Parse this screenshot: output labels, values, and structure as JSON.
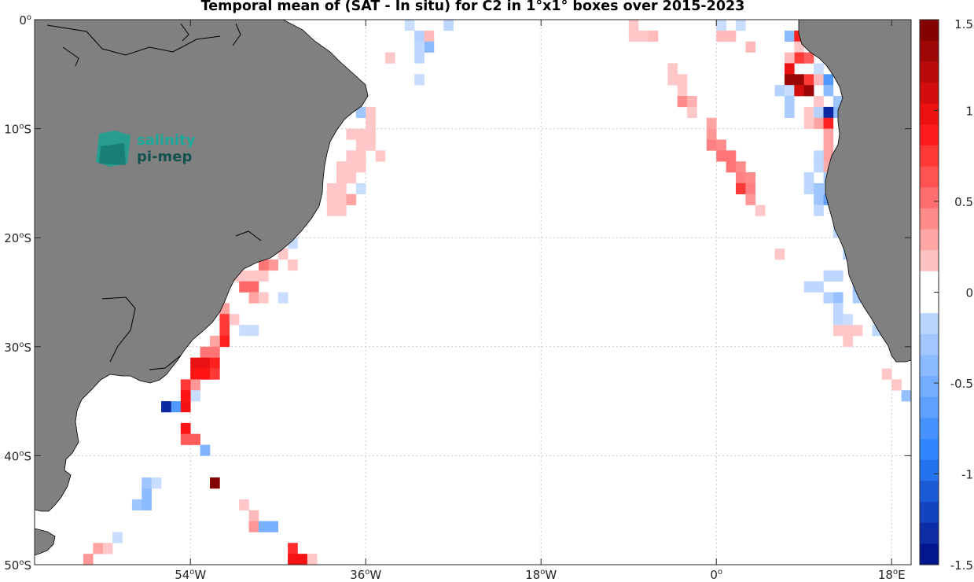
{
  "title": "Temporal mean of (SAT - In situ) for C2 in 1°x1° boxes over 2015-2023",
  "colors": {
    "land": "#808080",
    "ocean": "#ffffff",
    "grid": "#c8c8c8",
    "frame": "#262626"
  },
  "logo": {
    "line1": "salinity",
    "line2": "pi-mep",
    "color1": "#1aa89a",
    "color2": "#12524e"
  },
  "axes": {
    "lon_range": [
      -70,
      20
    ],
    "lat_range": [
      -50,
      0
    ],
    "x_ticks": [
      {
        "value": -54,
        "main": "54",
        "sup": "o",
        "dir": "W"
      },
      {
        "value": -36,
        "main": "36",
        "sup": "o",
        "dir": "W"
      },
      {
        "value": -18,
        "main": "18",
        "sup": "o",
        "dir": "W"
      },
      {
        "value": 0,
        "main": "0",
        "sup": "o",
        "dir": ""
      },
      {
        "value": 18,
        "main": "18",
        "sup": "o",
        "dir": "E"
      }
    ],
    "y_ticks": [
      {
        "value": 0,
        "main": "0",
        "sup": "o",
        "dir": ""
      },
      {
        "value": -10,
        "main": "10",
        "sup": "o",
        "dir": "S"
      },
      {
        "value": -20,
        "main": "20",
        "sup": "o",
        "dir": "S"
      },
      {
        "value": -30,
        "main": "30",
        "sup": "o",
        "dir": "S"
      },
      {
        "value": -40,
        "main": "40",
        "sup": "o",
        "dir": "S"
      },
      {
        "value": -50,
        "main": "50",
        "sup": "o",
        "dir": "S"
      }
    ]
  },
  "colorbar": {
    "range": [
      -1.5,
      1.5
    ],
    "ticks": [
      {
        "value": 1.5,
        "label": "1.5"
      },
      {
        "value": 1,
        "label": "1"
      },
      {
        "value": 0.5,
        "label": "0.5"
      },
      {
        "value": 0,
        "label": "0"
      },
      {
        "value": -0.5,
        "label": "-0.5"
      },
      {
        "value": -1,
        "label": "-1"
      },
      {
        "value": -1.5,
        "label": "-1.5"
      }
    ],
    "levels": 26
  },
  "chart_data": {
    "type": "heatmap",
    "title": "Temporal mean of (SAT - In situ) for C2 in 1°x1° boxes over 2015-2023",
    "xlabel": "",
    "ylabel": "",
    "xlim": [
      -70,
      20
    ],
    "ylim": [
      -50,
      0
    ],
    "value_range": [
      -1.5,
      1.5
    ],
    "cells": [
      [
        -31.5,
        -0.5,
        -0.1
      ],
      [
        -30.5,
        -1.5,
        -0.2
      ],
      [
        -29.5,
        -1.5,
        0.2
      ],
      [
        -29.5,
        -2.5,
        -0.4
      ],
      [
        -33.5,
        -3.5,
        0.15
      ],
      [
        -30.5,
        -2.5,
        -0.15
      ],
      [
        -30.5,
        -3.5,
        -0.15
      ],
      [
        -30.5,
        -5.5,
        -0.1
      ],
      [
        -27.5,
        -0.5,
        -0.15
      ],
      [
        -36.5,
        -8.5,
        -0.3
      ],
      [
        -35.5,
        -8.5,
        0.15
      ],
      [
        -35.5,
        -9.5,
        0.15
      ],
      [
        -35.5,
        -10.5,
        0.15
      ],
      [
        -36.5,
        -10.5,
        0.15
      ],
      [
        -37.5,
        -10.5,
        0.15
      ],
      [
        -36.5,
        -11.5,
        0.15
      ],
      [
        -35.5,
        -11.5,
        0.15
      ],
      [
        -37.5,
        -12.5,
        0.15
      ],
      [
        -36.5,
        -12.5,
        0.15
      ],
      [
        -34.5,
        -12.5,
        0.15
      ],
      [
        -38.5,
        -13.5,
        0.15
      ],
      [
        -37.5,
        -13.5,
        0.15
      ],
      [
        -36.5,
        -13.5,
        0.15
      ],
      [
        -38.5,
        -14.5,
        0.15
      ],
      [
        -37.5,
        -14.5,
        0.15
      ],
      [
        -38.5,
        -15.5,
        0.15
      ],
      [
        -39.5,
        -15.5,
        0.15
      ],
      [
        -38.5,
        -16.5,
        0.15
      ],
      [
        -37.5,
        -16.5,
        0.3
      ],
      [
        -36.5,
        -15.5,
        -0.1
      ],
      [
        -39.5,
        -17.5,
        0.15
      ],
      [
        -38.5,
        -17.5,
        0.15
      ],
      [
        -39.5,
        -16.5,
        0.15
      ],
      [
        -43.5,
        -20.5,
        -0.1
      ],
      [
        -44.5,
        -21.5,
        0.15
      ],
      [
        -43.5,
        -22.5,
        0.15
      ],
      [
        -45.5,
        -22.5,
        0.35
      ],
      [
        -46.5,
        -22.5,
        0.5
      ],
      [
        -46.5,
        -23.5,
        0.15
      ],
      [
        -47.5,
        -23.5,
        0.15
      ],
      [
        -48.5,
        -23.5,
        0.15
      ],
      [
        -49.5,
        -23.5,
        0.15
      ],
      [
        -48.5,
        -24.5,
        0.55
      ],
      [
        -47.5,
        -24.5,
        0.55
      ],
      [
        -47.5,
        -25.5,
        0.3
      ],
      [
        -46.5,
        -25.5,
        0.15
      ],
      [
        -44.5,
        -25.5,
        -0.1
      ],
      [
        -50.5,
        -26.5,
        0.3
      ],
      [
        -50.5,
        -27.5,
        0.75
      ],
      [
        -49.5,
        -27.5,
        0.15
      ],
      [
        -50.5,
        -28.5,
        0.75
      ],
      [
        -48.5,
        -28.5,
        -0.1
      ],
      [
        -47.5,
        -28.5,
        -0.1
      ],
      [
        -50.5,
        -29.5,
        0.85
      ],
      [
        -51.5,
        -29.5,
        0.3
      ],
      [
        -51.5,
        -30.5,
        0.5
      ],
      [
        -52.5,
        -30.5,
        0.5
      ],
      [
        -52.5,
        -31.5,
        1.0
      ],
      [
        -51.5,
        -31.5,
        0.85
      ],
      [
        -53.5,
        -31.5,
        1.0
      ],
      [
        -53.5,
        -32.5,
        0.9
      ],
      [
        -52.5,
        -32.5,
        0.9
      ],
      [
        -51.5,
        -32.5,
        0.75
      ],
      [
        -53.5,
        -33.5,
        0.35
      ],
      [
        -54.5,
        -33.5,
        0.75
      ],
      [
        -53.5,
        -34.5,
        -0.1
      ],
      [
        -54.5,
        -34.5,
        0.9
      ],
      [
        -55.5,
        -35.5,
        -0.7
      ],
      [
        -56.5,
        -35.5,
        -1.35
      ],
      [
        -54.5,
        -35.5,
        0.95
      ],
      [
        -54.5,
        -37.5,
        0.9
      ],
      [
        -53.5,
        -38.5,
        0.6
      ],
      [
        -54.5,
        -38.5,
        0.6
      ],
      [
        -52.5,
        -39.5,
        -0.45
      ],
      [
        -51.5,
        -42.5,
        1.45
      ],
      [
        -58.5,
        -42.5,
        -0.3
      ],
      [
        -57.5,
        -42.5,
        -0.1
      ],
      [
        -58.5,
        -43.5,
        -0.4
      ],
      [
        -59.5,
        -44.5,
        -0.3
      ],
      [
        -58.5,
        -44.5,
        -0.4
      ],
      [
        -48.5,
        -44.5,
        0.15
      ],
      [
        -47.5,
        -45.5,
        0.2
      ],
      [
        -47.5,
        -46.5,
        0.35
      ],
      [
        -46.5,
        -46.5,
        -0.5
      ],
      [
        -45.5,
        -46.5,
        -0.5
      ],
      [
        -61.5,
        -47.5,
        -0.1
      ],
      [
        -62.5,
        -48.5,
        0.15
      ],
      [
        -63.5,
        -48.5,
        0.3
      ],
      [
        -64.5,
        -49.5,
        0.35
      ],
      [
        -43.5,
        -48.5,
        0.8
      ],
      [
        -43.5,
        -49.5,
        0.95
      ],
      [
        -42.5,
        -49.5,
        0.95
      ],
      [
        -41.5,
        -49.5,
        0.15
      ],
      [
        -8.5,
        -0.5,
        0.15
      ],
      [
        -7.5,
        -1.5,
        0.15
      ],
      [
        -8.5,
        -1.5,
        0.15
      ],
      [
        -6.5,
        -1.5,
        0.2
      ],
      [
        0.5,
        -0.5,
        -0.1
      ],
      [
        2.5,
        -0.5,
        -0.1
      ],
      [
        0.5,
        -1.5,
        0.2
      ],
      [
        1.5,
        -1.5,
        0.2
      ],
      [
        3.5,
        -2.5,
        0.2
      ],
      [
        -4.5,
        -4.5,
        0.15
      ],
      [
        -4.5,
        -5.5,
        0.15
      ],
      [
        -3.5,
        -5.5,
        0.15
      ],
      [
        -3.5,
        -6.5,
        0.15
      ],
      [
        -3.5,
        -7.5,
        0.4
      ],
      [
        -2.5,
        -7.5,
        0.25
      ],
      [
        -2.5,
        -8.5,
        0.15
      ],
      [
        -0.5,
        -9.5,
        0.3
      ],
      [
        -0.5,
        -10.5,
        0.35
      ],
      [
        -0.5,
        -11.5,
        0.45
      ],
      [
        0.5,
        -11.5,
        0.4
      ],
      [
        0.5,
        -12.5,
        0.5
      ],
      [
        1.5,
        -12.5,
        0.5
      ],
      [
        1.5,
        -13.5,
        0.5
      ],
      [
        2.5,
        -13.5,
        0.4
      ],
      [
        2.5,
        -14.5,
        0.45
      ],
      [
        3.5,
        -14.5,
        0.4
      ],
      [
        2.5,
        -15.5,
        0.75
      ],
      [
        3.5,
        -15.5,
        0.45
      ],
      [
        3.5,
        -16.5,
        0.35
      ],
      [
        4.5,
        -17.5,
        0.15
      ],
      [
        6.5,
        -21.5,
        0.15
      ],
      [
        7.5,
        -1.5,
        -0.4
      ],
      [
        8.5,
        -1.5,
        0.85
      ],
      [
        8.5,
        -2.5,
        0.15
      ],
      [
        8.5,
        -3.5,
        0.75
      ],
      [
        9.5,
        -3.5,
        0.6
      ],
      [
        7.5,
        -3.5,
        0.2
      ],
      [
        7.5,
        -4.5,
        1.0
      ],
      [
        7.5,
        -5.5,
        1.35
      ],
      [
        8.5,
        -5.5,
        1.35
      ],
      [
        9.5,
        -5.5,
        0.75
      ],
      [
        10.5,
        -4.5,
        -0.1
      ],
      [
        10.5,
        -5.5,
        0.2
      ],
      [
        6.5,
        -6.5,
        -0.2
      ],
      [
        7.5,
        -6.5,
        -0.1
      ],
      [
        8.5,
        -6.5,
        1.1
      ],
      [
        9.5,
        -6.5,
        1.35
      ],
      [
        11.5,
        -5.5,
        -0.7
      ],
      [
        11.5,
        -6.5,
        -0.4
      ],
      [
        12.5,
        -7.5,
        -0.3
      ],
      [
        12.5,
        -8.5,
        -0.4
      ],
      [
        10.5,
        -7.5,
        0.15
      ],
      [
        7.5,
        -7.5,
        -0.25
      ],
      [
        7.5,
        -8.5,
        -0.25
      ],
      [
        9.5,
        -8.5,
        0.15
      ],
      [
        10.5,
        -8.5,
        -0.2
      ],
      [
        11.5,
        -8.5,
        -1.35
      ],
      [
        10.5,
        -9.5,
        0.3
      ],
      [
        11.5,
        -9.5,
        0.85
      ],
      [
        9.5,
        -9.5,
        0.15
      ],
      [
        11.5,
        -10.5,
        0.3
      ],
      [
        11.5,
        -11.5,
        0.3
      ],
      [
        11.5,
        -12.5,
        0.3
      ],
      [
        10.5,
        -12.5,
        -0.15
      ],
      [
        10.5,
        -13.5,
        -0.15
      ],
      [
        11.5,
        -13.5,
        0.25
      ],
      [
        9.5,
        -14.5,
        -0.15
      ],
      [
        9.5,
        -15.5,
        -0.15
      ],
      [
        11.5,
        -14.5,
        -0.25
      ],
      [
        11.5,
        -15.5,
        -0.25
      ],
      [
        10.5,
        -15.5,
        -0.3
      ],
      [
        10.5,
        -16.5,
        -0.3
      ],
      [
        11.5,
        -16.5,
        -0.6
      ],
      [
        10.5,
        -17.5,
        -0.15
      ],
      [
        12.5,
        -17.5,
        -0.15
      ],
      [
        12.5,
        -18.5,
        -0.3
      ],
      [
        12.5,
        -19.5,
        -0.15
      ],
      [
        13.5,
        -20.5,
        -0.1
      ],
      [
        13.5,
        -21.5,
        -0.2
      ],
      [
        14.5,
        -22.5,
        -0.25
      ],
      [
        14.5,
        -24.5,
        -0.35
      ],
      [
        14.5,
        -25.5,
        -0.25
      ],
      [
        11.5,
        -23.5,
        -0.15
      ],
      [
        12.5,
        -23.5,
        -0.15
      ],
      [
        9.5,
        -24.5,
        -0.15
      ],
      [
        10.5,
        -24.5,
        -0.15
      ],
      [
        11.5,
        -25.5,
        -0.2
      ],
      [
        12.5,
        -25.5,
        -0.35
      ],
      [
        12.5,
        -26.5,
        -0.15
      ],
      [
        12.5,
        -27.5,
        -0.15
      ],
      [
        13.5,
        -27.5,
        -0.1
      ],
      [
        12.5,
        -28.5,
        0.15
      ],
      [
        13.5,
        -28.5,
        0.15
      ],
      [
        13.5,
        -29.5,
        0.15
      ],
      [
        14.5,
        -28.5,
        0.15
      ],
      [
        16.5,
        -28.5,
        -0.15
      ],
      [
        17.5,
        -32.5,
        0.15
      ],
      [
        18.5,
        -33.5,
        0.15
      ],
      [
        19.5,
        -34.5,
        -0.35
      ]
    ]
  }
}
